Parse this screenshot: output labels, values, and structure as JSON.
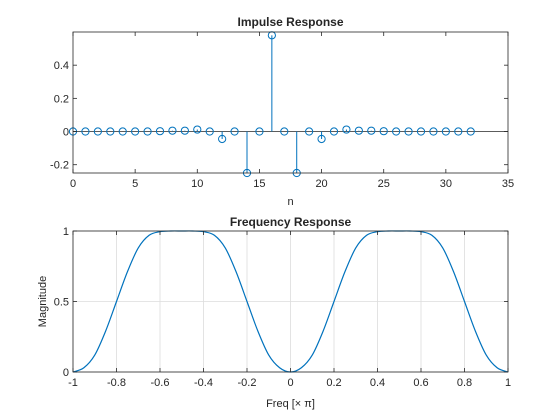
{
  "chart_data": [
    {
      "type": "stem",
      "title": "Impulse Response",
      "xlabel": "n",
      "ylabel": "",
      "xlim": [
        0,
        35
      ],
      "ylim": [
        -0.25,
        0.6
      ],
      "xticks": [
        0,
        5,
        10,
        15,
        20,
        25,
        30,
        35
      ],
      "xtick_labels": [
        "0",
        "5",
        "10",
        "15",
        "20",
        "25",
        "30",
        "35"
      ],
      "yticks": [
        -0.2,
        0,
        0.2,
        0.4
      ],
      "ytick_labels": [
        "-0.2",
        "0",
        "0.2",
        "0.4"
      ],
      "grid": false,
      "x": [
        0,
        1,
        2,
        3,
        4,
        5,
        6,
        7,
        8,
        9,
        10,
        11,
        12,
        13,
        14,
        15,
        16,
        17,
        18,
        19,
        20,
        21,
        22,
        23,
        24,
        25,
        26,
        27,
        28,
        29,
        30,
        31,
        32
      ],
      "y": [
        0,
        0,
        0,
        0,
        0,
        0,
        0,
        0.002,
        0.005,
        0.005,
        0.012,
        0,
        -0.045,
        0,
        -0.25,
        0,
        0.58,
        0,
        -0.25,
        0,
        -0.045,
        0,
        0.012,
        0.005,
        0.005,
        0.002,
        0,
        0,
        0,
        0,
        0,
        0,
        0
      ]
    },
    {
      "type": "line",
      "title": "Frequency Response",
      "xlabel": "Freq [× π]",
      "ylabel": "Magnitude",
      "xlim": [
        -1,
        1
      ],
      "ylim": [
        0,
        1
      ],
      "xticks": [
        -1,
        -0.8,
        -0.6,
        -0.4,
        -0.2,
        0,
        0.2,
        0.4,
        0.6,
        0.8,
        1
      ],
      "xtick_labels": [
        "-1",
        "-0.8",
        "-0.6",
        "-0.4",
        "-0.2",
        "0",
        "0.2",
        "0.4",
        "0.6",
        "0.8",
        "1"
      ],
      "yticks": [
        0,
        0.5,
        1
      ],
      "ytick_labels": [
        "0",
        "0.5",
        "1"
      ],
      "grid": true,
      "x": [
        -1,
        -0.95,
        -0.9,
        -0.85,
        -0.8,
        -0.75,
        -0.7,
        -0.65,
        -0.6,
        -0.55,
        -0.5,
        -0.45,
        -0.4,
        -0.35,
        -0.3,
        -0.25,
        -0.2,
        -0.15,
        -0.1,
        -0.05,
        0,
        0.05,
        0.1,
        0.15,
        0.2,
        0.25,
        0.3,
        0.35,
        0.4,
        0.45,
        0.5,
        0.55,
        0.6,
        0.65,
        0.7,
        0.75,
        0.8,
        0.85,
        0.9,
        0.95,
        1
      ],
      "y": [
        0,
        0.03,
        0.12,
        0.29,
        0.5,
        0.71,
        0.88,
        0.97,
        0.995,
        1,
        1,
        1,
        0.995,
        0.97,
        0.88,
        0.71,
        0.5,
        0.29,
        0.12,
        0.03,
        0,
        0.03,
        0.12,
        0.29,
        0.5,
        0.71,
        0.88,
        0.97,
        0.995,
        1,
        1,
        1,
        0.995,
        0.97,
        0.88,
        0.71,
        0.5,
        0.29,
        0.12,
        0.03,
        0
      ]
    }
  ]
}
